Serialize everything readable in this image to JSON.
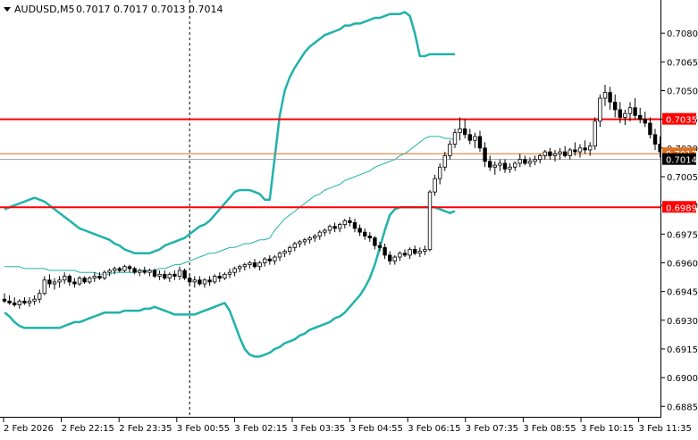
{
  "header": {
    "symbol": "AUDUSD,M5",
    "ohlc": "0.7017 0.7017 0.7013 0.7014"
  },
  "chart_data": {
    "type": "candlestick",
    "symbol": "AUDUSD",
    "timeframe": "M5",
    "ylim": [
      0.688,
      0.7095
    ],
    "grid": false,
    "y_ticks": [
      "0.7080",
      "0.7065",
      "0.7050",
      "0.7035",
      "0.7020",
      "0.7005",
      "0.6990",
      "0.6975",
      "0.6960",
      "0.6945",
      "0.6930",
      "0.6915",
      "0.6900",
      "0.6885"
    ],
    "x_ticks": [
      "2 Feb 2026",
      "2 Feb 22:15",
      "2 Feb 23:35",
      "3 Feb 00:55",
      "3 Feb 02:15",
      "3 Feb 03:35",
      "3 Feb 04:55",
      "3 Feb 06:15",
      "3 Feb 07:35",
      "3 Feb 08:55",
      "3 Feb 10:15",
      "3 Feb 11:35"
    ],
    "horizontal_levels": [
      {
        "value": 0.7035,
        "label": "0.7035",
        "color": "#ff0000"
      },
      {
        "value": 0.6989,
        "label": "0.6989",
        "color": "#ff0000"
      }
    ],
    "bid_line": {
      "value": 0.7014,
      "label": "0.7014"
    },
    "ask_line": {
      "value": 0.7017,
      "label": "0.7017",
      "color": "#e07020"
    },
    "period_separator_index": 37,
    "indicators": {
      "bollinger_bands": {
        "color": "#20b2aa",
        "upper": [
          0.6988,
          0.6989,
          0.699,
          0.6991,
          0.6992,
          0.6993,
          0.6994,
          0.6993,
          0.6992,
          0.699,
          0.6988,
          0.6986,
          0.6984,
          0.6982,
          0.698,
          0.6978,
          0.6977,
          0.6976,
          0.6975,
          0.6974,
          0.6973,
          0.6972,
          0.697,
          0.6969,
          0.6967,
          0.6966,
          0.6965,
          0.6965,
          0.6965,
          0.6965,
          0.6966,
          0.6967,
          0.6969,
          0.697,
          0.6971,
          0.6972,
          0.6973,
          0.6975,
          0.6977,
          0.6979,
          0.698,
          0.6982,
          0.6985,
          0.6988,
          0.6991,
          0.6994,
          0.6997,
          0.6998,
          0.6998,
          0.6998,
          0.6997,
          0.6996,
          0.6993,
          0.6993,
          0.7015,
          0.7037,
          0.705,
          0.7057,
          0.7062,
          0.7066,
          0.707,
          0.7073,
          0.7075,
          0.7077,
          0.7079,
          0.708,
          0.7081,
          0.7082,
          0.7084,
          0.7084,
          0.7085,
          0.7085,
          0.7086,
          0.7087,
          0.7088,
          0.7088,
          0.7089,
          0.709,
          0.709,
          0.709,
          0.7091,
          0.7089,
          0.708,
          0.7068,
          0.7068,
          0.7069,
          0.7069,
          0.7069,
          0.7069,
          0.7069,
          0.7069
        ],
        "middle": [
          0.6958,
          0.6958,
          0.6958,
          0.6958,
          0.6957,
          0.6957,
          0.6957,
          0.6957,
          0.6957,
          0.6956,
          0.6956,
          0.6956,
          0.6956,
          0.6956,
          0.6956,
          0.6955,
          0.6955,
          0.6955,
          0.6955,
          0.6954,
          0.6954,
          0.6954,
          0.6955,
          0.6955,
          0.6955,
          0.6955,
          0.6955,
          0.6956,
          0.6956,
          0.6956,
          0.6956,
          0.6957,
          0.6957,
          0.6958,
          0.6959,
          0.6959,
          0.696,
          0.6961,
          0.6962,
          0.6963,
          0.6964,
          0.6965,
          0.6965,
          0.6966,
          0.6967,
          0.6968,
          0.6968,
          0.6969,
          0.697,
          0.697,
          0.6971,
          0.6972,
          0.6972,
          0.6973,
          0.6977,
          0.698,
          0.6983,
          0.6985,
          0.6987,
          0.6989,
          0.6991,
          0.6993,
          0.6995,
          0.6996,
          0.6998,
          0.6999,
          0.7,
          0.7001,
          0.7003,
          0.7004,
          0.7005,
          0.7006,
          0.7007,
          0.7008,
          0.701,
          0.7011,
          0.7012,
          0.7013,
          0.7014,
          0.7016,
          0.7017,
          0.7019,
          0.7021,
          0.7023,
          0.7025,
          0.7026,
          0.7026,
          0.7026,
          0.7025,
          0.7025,
          0.7024
        ],
        "lower": [
          0.6934,
          0.6932,
          0.6929,
          0.6927,
          0.6926,
          0.6926,
          0.6926,
          0.6926,
          0.6926,
          0.6926,
          0.6926,
          0.6926,
          0.6927,
          0.6928,
          0.6929,
          0.6929,
          0.693,
          0.6931,
          0.6932,
          0.6933,
          0.6934,
          0.6934,
          0.6934,
          0.6934,
          0.6935,
          0.6935,
          0.6935,
          0.6935,
          0.6936,
          0.6936,
          0.6937,
          0.6936,
          0.6935,
          0.6934,
          0.6933,
          0.6933,
          0.6933,
          0.6933,
          0.6933,
          0.6934,
          0.6935,
          0.6936,
          0.6937,
          0.6938,
          0.6939,
          0.6935,
          0.6928,
          0.6921,
          0.6915,
          0.6912,
          0.6911,
          0.6911,
          0.6912,
          0.6913,
          0.6915,
          0.6916,
          0.6918,
          0.6919,
          0.692,
          0.6922,
          0.6923,
          0.6925,
          0.6926,
          0.6927,
          0.6928,
          0.6929,
          0.6931,
          0.6932,
          0.6934,
          0.6937,
          0.694,
          0.6943,
          0.6947,
          0.6952,
          0.6959,
          0.6968,
          0.6977,
          0.6985,
          0.6988,
          0.6989,
          0.6989,
          0.6989,
          0.6989,
          0.6989,
          0.6989,
          0.6989,
          0.6989,
          0.6988,
          0.6987,
          0.6986,
          0.6987
        ]
      }
    },
    "candles": {
      "fields": [
        "open",
        "high",
        "low",
        "close"
      ],
      "values": [
        [
          0.6941,
          0.6944,
          0.6939,
          0.694
        ],
        [
          0.694,
          0.6943,
          0.6938,
          0.6939
        ],
        [
          0.6939,
          0.6942,
          0.6937,
          0.6938
        ],
        [
          0.6938,
          0.6941,
          0.6936,
          0.694
        ],
        [
          0.694,
          0.6942,
          0.6938,
          0.6939
        ],
        [
          0.6939,
          0.6942,
          0.6937,
          0.694
        ],
        [
          0.694,
          0.6943,
          0.6938,
          0.6941
        ],
        [
          0.6941,
          0.6946,
          0.6939,
          0.6944
        ],
        [
          0.6944,
          0.6953,
          0.6943,
          0.6951
        ],
        [
          0.6951,
          0.6954,
          0.6947,
          0.6949
        ],
        [
          0.6949,
          0.6952,
          0.6946,
          0.695
        ],
        [
          0.695,
          0.6953,
          0.6947,
          0.6951
        ],
        [
          0.6951,
          0.6955,
          0.6949,
          0.6953
        ],
        [
          0.6953,
          0.6954,
          0.6948,
          0.695
        ],
        [
          0.695,
          0.6952,
          0.6947,
          0.6949
        ],
        [
          0.6949,
          0.6953,
          0.6948,
          0.6952
        ],
        [
          0.6952,
          0.6953,
          0.6949,
          0.695
        ],
        [
          0.695,
          0.6953,
          0.6949,
          0.6952
        ],
        [
          0.6952,
          0.6955,
          0.695,
          0.6953
        ],
        [
          0.6953,
          0.6955,
          0.6951,
          0.6952
        ],
        [
          0.6952,
          0.6956,
          0.6951,
          0.6955
        ],
        [
          0.6955,
          0.6957,
          0.6953,
          0.6956
        ],
        [
          0.6956,
          0.6958,
          0.6954,
          0.6957
        ],
        [
          0.6957,
          0.6958,
          0.6955,
          0.6956
        ],
        [
          0.6956,
          0.6959,
          0.6955,
          0.6958
        ],
        [
          0.6958,
          0.6959,
          0.6955,
          0.6957
        ],
        [
          0.6957,
          0.6958,
          0.6954,
          0.6955
        ],
        [
          0.6955,
          0.6957,
          0.6953,
          0.6956
        ],
        [
          0.6956,
          0.6958,
          0.6954,
          0.6955
        ],
        [
          0.6955,
          0.6957,
          0.6953,
          0.6956
        ],
        [
          0.6956,
          0.6957,
          0.6952,
          0.6953
        ],
        [
          0.6953,
          0.6956,
          0.6951,
          0.6954
        ],
        [
          0.6954,
          0.6956,
          0.6951,
          0.6952
        ],
        [
          0.6952,
          0.6955,
          0.695,
          0.6954
        ],
        [
          0.6954,
          0.6956,
          0.6951,
          0.6953
        ],
        [
          0.6953,
          0.6958,
          0.6951,
          0.6956
        ],
        [
          0.6956,
          0.6957,
          0.6951,
          0.6952
        ],
        [
          0.6952,
          0.6954,
          0.6948,
          0.695
        ],
        [
          0.695,
          0.6953,
          0.6947,
          0.6951
        ],
        [
          0.6951,
          0.6953,
          0.6948,
          0.6949
        ],
        [
          0.6949,
          0.6952,
          0.6947,
          0.6951
        ],
        [
          0.6951,
          0.6953,
          0.6948,
          0.695
        ],
        [
          0.695,
          0.6954,
          0.6949,
          0.6953
        ],
        [
          0.6953,
          0.6955,
          0.695,
          0.6952
        ],
        [
          0.6952,
          0.6955,
          0.6951,
          0.6954
        ],
        [
          0.6954,
          0.6957,
          0.6952,
          0.6955
        ],
        [
          0.6955,
          0.6958,
          0.6953,
          0.6957
        ],
        [
          0.6957,
          0.6959,
          0.6955,
          0.6958
        ],
        [
          0.6958,
          0.696,
          0.6956,
          0.6959
        ],
        [
          0.6959,
          0.6961,
          0.6957,
          0.696
        ],
        [
          0.696,
          0.6962,
          0.6957,
          0.6958
        ],
        [
          0.6958,
          0.6961,
          0.6956,
          0.696
        ],
        [
          0.696,
          0.6963,
          0.6958,
          0.6962
        ],
        [
          0.6962,
          0.6964,
          0.6959,
          0.6961
        ],
        [
          0.6961,
          0.6964,
          0.6959,
          0.6963
        ],
        [
          0.6963,
          0.6966,
          0.6961,
          0.6965
        ],
        [
          0.6965,
          0.6967,
          0.6963,
          0.6966
        ],
        [
          0.6966,
          0.6969,
          0.6964,
          0.6968
        ],
        [
          0.6968,
          0.6971,
          0.6966,
          0.697
        ],
        [
          0.697,
          0.6972,
          0.6968,
          0.6971
        ],
        [
          0.6971,
          0.6973,
          0.6969,
          0.6972
        ],
        [
          0.6972,
          0.6974,
          0.697,
          0.6973
        ],
        [
          0.6973,
          0.6975,
          0.6971,
          0.6974
        ],
        [
          0.6974,
          0.6977,
          0.6972,
          0.6976
        ],
        [
          0.6976,
          0.6978,
          0.6974,
          0.6977
        ],
        [
          0.6977,
          0.698,
          0.6975,
          0.6979
        ],
        [
          0.6979,
          0.6981,
          0.6976,
          0.6978
        ],
        [
          0.6978,
          0.6981,
          0.6976,
          0.698
        ],
        [
          0.698,
          0.6983,
          0.6978,
          0.6982
        ],
        [
          0.6982,
          0.6984,
          0.6979,
          0.6981
        ],
        [
          0.6981,
          0.6983,
          0.6976,
          0.6978
        ],
        [
          0.6978,
          0.698,
          0.6974,
          0.6976
        ],
        [
          0.6976,
          0.6978,
          0.6972,
          0.6974
        ],
        [
          0.6974,
          0.6976,
          0.6971,
          0.6973
        ],
        [
          0.6973,
          0.6974,
          0.6967,
          0.6969
        ],
        [
          0.6969,
          0.6971,
          0.6966,
          0.6968
        ],
        [
          0.6968,
          0.697,
          0.6962,
          0.6964
        ],
        [
          0.6964,
          0.6966,
          0.6959,
          0.6961
        ],
        [
          0.6961,
          0.6964,
          0.6959,
          0.6963
        ],
        [
          0.6963,
          0.6966,
          0.6961,
          0.6965
        ],
        [
          0.6965,
          0.6967,
          0.6963,
          0.6964
        ],
        [
          0.6964,
          0.6968,
          0.6962,
          0.6967
        ],
        [
          0.6967,
          0.6969,
          0.6964,
          0.6965
        ],
        [
          0.6965,
          0.6968,
          0.6963,
          0.6966
        ],
        [
          0.6966,
          0.6969,
          0.6964,
          0.6967
        ],
        [
          0.6967,
          0.6998,
          0.6966,
          0.6997
        ],
        [
          0.6997,
          0.7006,
          0.6995,
          0.7004
        ],
        [
          0.7004,
          0.7012,
          0.7001,
          0.701
        ],
        [
          0.701,
          0.7018,
          0.7008,
          0.7016
        ],
        [
          0.7016,
          0.7024,
          0.7014,
          0.7022
        ],
        [
          0.7022,
          0.703,
          0.702,
          0.7028
        ],
        [
          0.7028,
          0.7036,
          0.7024,
          0.703
        ],
        [
          0.703,
          0.7035,
          0.7025,
          0.7027
        ],
        [
          0.7027,
          0.703,
          0.7022,
          0.7024
        ],
        [
          0.7024,
          0.7028,
          0.702,
          0.7026
        ],
        [
          0.7026,
          0.7029,
          0.7018,
          0.702
        ],
        [
          0.702,
          0.7023,
          0.701,
          0.7013
        ],
        [
          0.7013,
          0.7016,
          0.7008,
          0.701
        ],
        [
          0.701,
          0.7013,
          0.7006,
          0.7011
        ],
        [
          0.7011,
          0.7014,
          0.7008,
          0.7012
        ],
        [
          0.7012,
          0.7014,
          0.7007,
          0.7009
        ],
        [
          0.7009,
          0.7012,
          0.7007,
          0.701
        ],
        [
          0.701,
          0.7013,
          0.7008,
          0.7012
        ],
        [
          0.7012,
          0.7017,
          0.701,
          0.7014
        ],
        [
          0.7014,
          0.7016,
          0.7011,
          0.7012
        ],
        [
          0.7012,
          0.7015,
          0.701,
          0.7013
        ],
        [
          0.7013,
          0.7016,
          0.7011,
          0.7014
        ],
        [
          0.7014,
          0.7017,
          0.7012,
          0.7016
        ],
        [
          0.7016,
          0.7019,
          0.7014,
          0.7018
        ],
        [
          0.7018,
          0.702,
          0.7014,
          0.7016
        ],
        [
          0.7016,
          0.7019,
          0.7013,
          0.7017
        ],
        [
          0.7017,
          0.702,
          0.7014,
          0.7018
        ],
        [
          0.7018,
          0.7021,
          0.7015,
          0.7016
        ],
        [
          0.7016,
          0.702,
          0.7014,
          0.7019
        ],
        [
          0.7019,
          0.7023,
          0.7016,
          0.7018
        ],
        [
          0.7018,
          0.7022,
          0.7015,
          0.702
        ],
        [
          0.702,
          0.7024,
          0.7017,
          0.7019
        ],
        [
          0.7019,
          0.7023,
          0.7016,
          0.7021
        ],
        [
          0.7021,
          0.7036,
          0.7019,
          0.7034
        ],
        [
          0.7034,
          0.7048,
          0.7031,
          0.7046
        ],
        [
          0.7046,
          0.7053,
          0.7042,
          0.7049
        ],
        [
          0.7049,
          0.7052,
          0.704,
          0.7044
        ],
        [
          0.7044,
          0.7048,
          0.7036,
          0.704
        ],
        [
          0.704,
          0.7044,
          0.7033,
          0.7036
        ],
        [
          0.7036,
          0.704,
          0.7032,
          0.7038
        ],
        [
          0.7038,
          0.7044,
          0.7034,
          0.7041
        ],
        [
          0.7041,
          0.7046,
          0.7035,
          0.7037
        ],
        [
          0.7037,
          0.7041,
          0.7033,
          0.7035
        ],
        [
          0.7035,
          0.7039,
          0.7031,
          0.7033
        ],
        [
          0.7033,
          0.7036,
          0.7025,
          0.7027
        ],
        [
          0.7027,
          0.703,
          0.7019,
          0.7022
        ],
        [
          0.7022,
          0.7026,
          0.7015,
          0.7018
        ],
        [
          0.7018,
          0.7021,
          0.701,
          0.7013
        ],
        [
          0.7013,
          0.7017,
          0.7011,
          0.7015
        ],
        [
          0.7015,
          0.7018,
          0.7012,
          0.7014
        ]
      ]
    }
  }
}
